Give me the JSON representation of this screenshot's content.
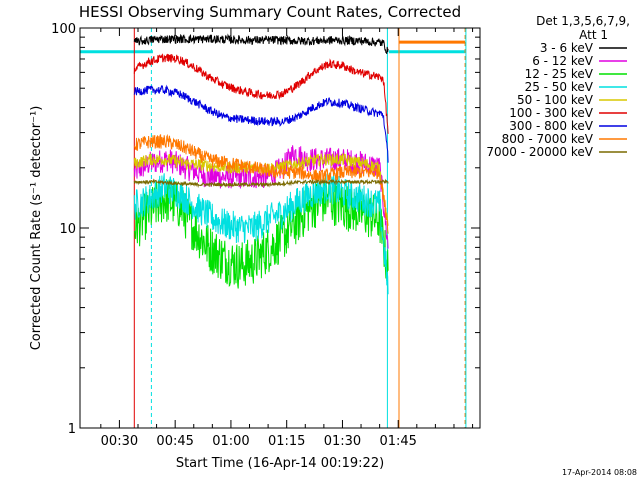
{
  "chart_data": {
    "type": "line",
    "title": "HESSI Observing Summary Count Rates, Corrected",
    "xlabel": "Start Time (16-Apr-14 00:19:22)",
    "ylabel": "Corrected Count Rate (s⁻¹ detector⁻¹)",
    "x_unit": "minutes after 00:00 UT, 16-Apr-2014",
    "xlim": [
      19.4,
      127.0
    ],
    "ylim": [
      1,
      100
    ],
    "yscale": "log",
    "x_ticks": [
      30,
      45,
      60,
      75,
      90,
      105
    ],
    "x_tick_labels": [
      "00:30",
      "00:45",
      "01:00",
      "01:15",
      "01:30",
      "01:45"
    ],
    "y_ticks": [
      1,
      10,
      100
    ],
    "y_tick_labels": [
      "1",
      "10",
      "100"
    ],
    "legend_position": "right",
    "legend_header": [
      "Det 1,3,5,6,7,9,",
      "Att 1"
    ],
    "footer_date": "17-Apr-2014 08:08",
    "data_start": 34.0,
    "data_end": 102.3,
    "series": [
      {
        "name": "3 - 6 keV",
        "color": "#000000",
        "points": [
          [
            34,
            85
          ],
          [
            40,
            88
          ],
          [
            48,
            88
          ],
          [
            56,
            88
          ],
          [
            64,
            87
          ],
          [
            72,
            87
          ],
          [
            80,
            86
          ],
          [
            88,
            87
          ],
          [
            96,
            86
          ],
          [
            101,
            84
          ],
          [
            102.3,
            75
          ]
        ]
      },
      {
        "name": "6 - 12 keV",
        "color": "#e000e0",
        "points": [
          [
            34,
            19
          ],
          [
            38,
            21
          ],
          [
            43,
            22
          ],
          [
            48,
            20
          ],
          [
            54,
            18
          ],
          [
            60,
            18
          ],
          [
            66,
            18
          ],
          [
            70,
            18
          ],
          [
            74,
            20
          ],
          [
            77,
            24
          ],
          [
            80,
            22
          ],
          [
            85,
            22
          ],
          [
            90,
            22
          ],
          [
            96,
            21
          ],
          [
            100,
            20
          ],
          [
            102.3,
            8
          ]
        ]
      },
      {
        "name": "12 - 25 keV",
        "color": "#00e000",
        "points": [
          [
            34,
            10
          ],
          [
            38,
            12
          ],
          [
            42,
            14
          ],
          [
            46,
            13
          ],
          [
            50,
            10
          ],
          [
            54,
            8
          ],
          [
            58,
            7
          ],
          [
            62,
            6.5
          ],
          [
            66,
            6.8
          ],
          [
            70,
            7.8
          ],
          [
            74,
            9
          ],
          [
            78,
            11
          ],
          [
            82,
            13
          ],
          [
            86,
            14
          ],
          [
            90,
            13
          ],
          [
            95,
            12
          ],
          [
            100,
            11
          ],
          [
            102.3,
            6
          ]
        ]
      },
      {
        "name": "25 - 50 keV",
        "color": "#00e0e0",
        "points": [
          [
            34,
            13
          ],
          [
            38,
            14
          ],
          [
            42,
            16
          ],
          [
            46,
            15
          ],
          [
            50,
            13
          ],
          [
            54,
            11.5
          ],
          [
            58,
            10.5
          ],
          [
            62,
            10
          ],
          [
            66,
            10
          ],
          [
            70,
            11
          ],
          [
            74,
            12
          ],
          [
            78,
            13.5
          ],
          [
            82,
            15
          ],
          [
            86,
            16
          ],
          [
            90,
            15
          ],
          [
            95,
            14
          ],
          [
            100,
            13
          ],
          [
            102.3,
            5
          ]
        ]
      },
      {
        "name": "50 - 100 keV",
        "color": "#d8c800",
        "points": [
          [
            34,
            21
          ],
          [
            38,
            22
          ],
          [
            43,
            22
          ],
          [
            48,
            21
          ],
          [
            54,
            20.5
          ],
          [
            60,
            20
          ],
          [
            66,
            20
          ],
          [
            72,
            20
          ],
          [
            78,
            21
          ],
          [
            84,
            22
          ],
          [
            90,
            22
          ],
          [
            96,
            21
          ],
          [
            100,
            20
          ],
          [
            102.3,
            10
          ]
        ]
      },
      {
        "name": "100 - 300 keV",
        "color": "#e00000",
        "points": [
          [
            34,
            62
          ],
          [
            38,
            68
          ],
          [
            42,
            71
          ],
          [
            46,
            70
          ],
          [
            50,
            64
          ],
          [
            54,
            57
          ],
          [
            58,
            52
          ],
          [
            62,
            49
          ],
          [
            66,
            47
          ],
          [
            70,
            46
          ],
          [
            74,
            47
          ],
          [
            78,
            52
          ],
          [
            82,
            60
          ],
          [
            86,
            66
          ],
          [
            90,
            65
          ],
          [
            94,
            60
          ],
          [
            98,
            58
          ],
          [
            101,
            56
          ],
          [
            102.3,
            30
          ]
        ]
      },
      {
        "name": "300 - 800 keV",
        "color": "#0000e0",
        "points": [
          [
            34,
            48
          ],
          [
            38,
            49
          ],
          [
            42,
            49
          ],
          [
            46,
            47
          ],
          [
            50,
            43
          ],
          [
            54,
            39
          ],
          [
            58,
            36
          ],
          [
            62,
            35
          ],
          [
            66,
            34.5
          ],
          [
            70,
            34
          ],
          [
            74,
            34
          ],
          [
            78,
            36
          ],
          [
            82,
            40
          ],
          [
            86,
            43
          ],
          [
            90,
            42
          ],
          [
            94,
            40
          ],
          [
            98,
            38
          ],
          [
            101,
            37
          ],
          [
            102.3,
            22
          ]
        ]
      },
      {
        "name": "800 - 7000 keV",
        "color": "#ff7800",
        "points": [
          [
            34,
            26
          ],
          [
            38,
            27
          ],
          [
            43,
            27
          ],
          [
            48,
            25
          ],
          [
            54,
            22
          ],
          [
            60,
            21
          ],
          [
            66,
            20
          ],
          [
            72,
            19
          ],
          [
            78,
            19
          ],
          [
            84,
            18
          ],
          [
            90,
            19
          ],
          [
            96,
            19
          ],
          [
            100,
            19
          ],
          [
            102.3,
            10
          ]
        ]
      },
      {
        "name": "7000 - 20000 keV",
        "color": "#7a6a00",
        "points": [
          [
            34,
            17
          ],
          [
            40,
            17
          ],
          [
            50,
            16.5
          ],
          [
            60,
            16.5
          ],
          [
            70,
            16.5
          ],
          [
            80,
            17
          ],
          [
            90,
            17
          ],
          [
            100,
            17
          ]
        ]
      }
    ],
    "segments": [
      {
        "color": "#00e0e0",
        "x": [
          19.4,
          39.0
        ],
        "y": 76
      },
      {
        "color": "#00e0e0",
        "x": [
          102.5,
          123.0
        ],
        "y": 76
      },
      {
        "color": "#ff7800",
        "x": [
          105.3,
          123.0
        ],
        "y": 85
      }
    ],
    "vertical_markers": [
      {
        "x": 34.0,
        "color": "#e00000",
        "style": "solid"
      },
      {
        "x": 38.6,
        "color": "#00e0e0",
        "style": "dashed"
      },
      {
        "x": 102.1,
        "color": "#00e0e0",
        "style": "solid"
      },
      {
        "x": 105.2,
        "color": "#ff7800",
        "style": "solid"
      },
      {
        "x": 123.0,
        "color": "#ff7800",
        "style": "dashed"
      },
      {
        "x": 123.2,
        "color": "#00e0e0",
        "style": "solid"
      }
    ]
  }
}
